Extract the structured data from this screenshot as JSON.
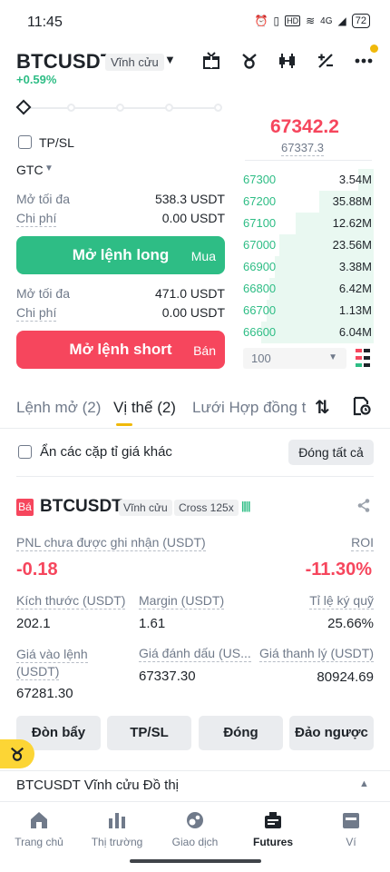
{
  "status_bar": {
    "time": "11:45",
    "network": "4G",
    "battery": "72"
  },
  "header": {
    "symbol": "BTCUSDT",
    "contract_type": "Vĩnh cửu",
    "change": "+0.59%",
    "icons": [
      "gift-icon",
      "bot-icon",
      "candlestick-icon",
      "calculator-icon",
      "more-icon"
    ]
  },
  "order_form": {
    "tpsl_label": "TP/SL",
    "time_in_force": "GTC",
    "long": {
      "max_label": "Mở tối đa",
      "max_value": "538.3 USDT",
      "cost_label": "Chi phí",
      "cost_value": "0.00 USDT",
      "button": "Mở lệnh long",
      "button_side": "Mua"
    },
    "short": {
      "max_label": "Mở tối đa",
      "max_value": "471.0 USDT",
      "cost_label": "Chi phí",
      "cost_value": "0.00 USDT",
      "button": "Mở lệnh short",
      "button_side": "Bán"
    }
  },
  "order_book": {
    "last_price": "67342.2",
    "mark_price": "67337.3",
    "rows": [
      {
        "price": "67300",
        "qty": "3.54M",
        "depth": 0.12
      },
      {
        "price": "67200",
        "qty": "35.88M",
        "depth": 0.42
      },
      {
        "price": "67100",
        "qty": "12.62M",
        "depth": 0.6
      },
      {
        "price": "67000",
        "qty": "23.56M",
        "depth": 0.72
      },
      {
        "price": "66900",
        "qty": "3.38M",
        "depth": 0.76
      },
      {
        "price": "66800",
        "qty": "6.42M",
        "depth": 0.8
      },
      {
        "price": "66700",
        "qty": "1.13M",
        "depth": 0.82
      },
      {
        "price": "66600",
        "qty": "6.04M",
        "depth": 0.86
      }
    ],
    "depth_step": "100"
  },
  "tabs": [
    {
      "label": "Lệnh mở (2)"
    },
    {
      "label": "Vị thế (2)"
    },
    {
      "label": "Lưới Hợp đồng tư"
    }
  ],
  "filter": {
    "hide_other_pairs": "Ẩn các cặp tỉ giá khác",
    "close_all": "Đóng tất cả"
  },
  "position": {
    "side_badge": "Bá",
    "symbol": "BTCUSDT",
    "contract_type": "Vĩnh cửu",
    "margin_mode": "Cross 125x",
    "pnl_label": "PNL chưa được ghi nhận (USDT)",
    "pnl_value": "-0.18",
    "roi_label": "ROI",
    "roi_value": "-11.30%",
    "size_label": "Kích thước (USDT)",
    "size_value": "202.1",
    "margin_label": "Margin (USDT)",
    "margin_value": "1.61",
    "margin_ratio_label": "Tỉ lệ ký quỹ",
    "margin_ratio_value": "25.66%",
    "entry_label_1": "Giá vào lệnh",
    "entry_label_2": "(USDT)",
    "entry_value": "67281.30",
    "mark_label": "Giá đánh dấu (US...",
    "mark_value": "67337.30",
    "liq_label": "Giá thanh lý (USDT)",
    "liq_value": "80924.69",
    "actions": [
      "Đòn bẩy",
      "TP/SL",
      "Đóng",
      "Đảo ngược"
    ]
  },
  "chart_bar": {
    "label": "BTCUSDT Vĩnh cửu Đồ thị"
  },
  "bottom_nav": [
    {
      "label": "Trang chủ",
      "icon": "home-icon"
    },
    {
      "label": "Thị trường",
      "icon": "markets-icon"
    },
    {
      "label": "Giao dịch",
      "icon": "trade-icon"
    },
    {
      "label": "Futures",
      "icon": "futures-icon"
    },
    {
      "label": "Ví",
      "icon": "wallet-icon"
    }
  ],
  "colors": {
    "green": "#2ebd85",
    "red": "#f6465d",
    "accent": "#f0b90b"
  }
}
